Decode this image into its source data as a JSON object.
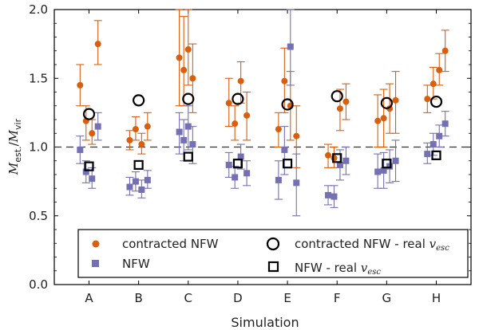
{
  "chart_data": {
    "type": "scatter",
    "xlabel": "Simulation",
    "ylabel": "M_est. / M_vir",
    "ylabel_main": "M",
    "ylabel_sub_num": "est.",
    "ylabel_sub_den": "vir",
    "ylim": [
      0.0,
      2.0
    ],
    "yticks": [
      0.0,
      0.5,
      1.0,
      1.5,
      2.0
    ],
    "ytick_labels": [
      "0.0",
      "0.5",
      "1.0",
      "1.5",
      "2.0"
    ],
    "categories": [
      "A",
      "B",
      "C",
      "D",
      "E",
      "F",
      "G",
      "H"
    ],
    "reference_line": 1.0,
    "colors": {
      "contracted": "#d95f0e",
      "nfw": "#7570b3",
      "frame": "#000000"
    },
    "legend": {
      "placement": "bottom",
      "entries": [
        {
          "marker": "circle-filled",
          "label": "contracted NFW"
        },
        {
          "marker": "circle-open",
          "label": "contracted NFW - real",
          "math": "v",
          "math_sub": "esc"
        },
        {
          "marker": "square-filled",
          "label": "NFW"
        },
        {
          "marker": "square-open",
          "label": "NFW - real",
          "math": "v",
          "math_sub": "esc"
        }
      ]
    },
    "series": [
      {
        "name": "contracted NFW",
        "marker": "circle-filled",
        "points": [
          {
            "x": "A",
            "offset": -0.18,
            "y": 1.45,
            "lo": 1.3,
            "hi": 1.6
          },
          {
            "x": "A",
            "offset": -0.06,
            "y": 1.19,
            "lo": 1.05,
            "hi": 1.3
          },
          {
            "x": "A",
            "offset": 0.06,
            "y": 1.1,
            "lo": 1.02,
            "hi": 1.2
          },
          {
            "x": "A",
            "offset": 0.18,
            "y": 1.75,
            "lo": 1.6,
            "hi": 1.92
          },
          {
            "x": "B",
            "offset": -0.18,
            "y": 1.05,
            "lo": 0.98,
            "hi": 1.12
          },
          {
            "x": "B",
            "offset": -0.06,
            "y": 1.13,
            "lo": 1.05,
            "hi": 1.22
          },
          {
            "x": "B",
            "offset": 0.06,
            "y": 1.02,
            "lo": 0.95,
            "hi": 1.1
          },
          {
            "x": "B",
            "offset": 0.18,
            "y": 1.15,
            "lo": 1.05,
            "hi": 1.25
          },
          {
            "x": "C",
            "offset": -0.18,
            "y": 1.65,
            "lo": 1.3,
            "hi": 2.0
          },
          {
            "x": "C",
            "offset": -0.09,
            "y": 1.56,
            "lo": 1.3,
            "hi": 1.95
          },
          {
            "x": "C",
            "offset": 0.0,
            "y": 1.71,
            "lo": 1.45,
            "hi": 2.0
          },
          {
            "x": "C",
            "offset": 0.09,
            "y": 1.5,
            "lo": 1.25,
            "hi": 1.75
          },
          {
            "x": "D",
            "offset": -0.18,
            "y": 1.32,
            "lo": 1.15,
            "hi": 1.5
          },
          {
            "x": "D",
            "offset": -0.06,
            "y": 1.17,
            "lo": 1.05,
            "hi": 1.3
          },
          {
            "x": "D",
            "offset": 0.06,
            "y": 1.48,
            "lo": 1.32,
            "hi": 1.62
          },
          {
            "x": "D",
            "offset": 0.18,
            "y": 1.23,
            "lo": 1.05,
            "hi": 1.4
          },
          {
            "x": "E",
            "offset": -0.18,
            "y": 1.13,
            "lo": 1.0,
            "hi": 1.25
          },
          {
            "x": "E",
            "offset": -0.06,
            "y": 1.48,
            "lo": 1.25,
            "hi": 1.72
          },
          {
            "x": "E",
            "offset": 0.06,
            "y": 1.3,
            "lo": 1.05,
            "hi": 1.55
          },
          {
            "x": "E",
            "offset": 0.18,
            "y": 1.08,
            "lo": 0.85,
            "hi": 1.3
          },
          {
            "x": "F",
            "offset": -0.18,
            "y": 0.94,
            "lo": 0.85,
            "hi": 1.02
          },
          {
            "x": "F",
            "offset": -0.06,
            "y": 0.92,
            "lo": 0.85,
            "hi": 1.0
          },
          {
            "x": "F",
            "offset": 0.06,
            "y": 1.28,
            "lo": 1.12,
            "hi": 1.42
          },
          {
            "x": "F",
            "offset": 0.18,
            "y": 1.33,
            "lo": 1.2,
            "hi": 1.46
          },
          {
            "x": "G",
            "offset": -0.18,
            "y": 1.19,
            "lo": 1.0,
            "hi": 1.38
          },
          {
            "x": "G",
            "offset": -0.06,
            "y": 1.21,
            "lo": 1.0,
            "hi": 1.42
          },
          {
            "x": "G",
            "offset": 0.06,
            "y": 1.28,
            "lo": 1.1,
            "hi": 1.46
          },
          {
            "x": "G",
            "offset": 0.18,
            "y": 1.34,
            "lo": 1.1,
            "hi": 1.55
          },
          {
            "x": "H",
            "offset": -0.18,
            "y": 1.35,
            "lo": 1.25,
            "hi": 1.45
          },
          {
            "x": "H",
            "offset": -0.06,
            "y": 1.46,
            "lo": 1.35,
            "hi": 1.58
          },
          {
            "x": "H",
            "offset": 0.06,
            "y": 1.56,
            "lo": 1.45,
            "hi": 1.68
          },
          {
            "x": "H",
            "offset": 0.18,
            "y": 1.7,
            "lo": 1.55,
            "hi": 1.85
          }
        ]
      },
      {
        "name": "NFW",
        "marker": "square-filled",
        "points": [
          {
            "x": "A",
            "offset": -0.18,
            "y": 0.98,
            "lo": 0.88,
            "hi": 1.08
          },
          {
            "x": "A",
            "offset": -0.06,
            "y": 0.82,
            "lo": 0.74,
            "hi": 0.9
          },
          {
            "x": "A",
            "offset": 0.06,
            "y": 0.77,
            "lo": 0.7,
            "hi": 0.85
          },
          {
            "x": "A",
            "offset": 0.18,
            "y": 1.15,
            "lo": 1.05,
            "hi": 1.25
          },
          {
            "x": "B",
            "offset": -0.18,
            "y": 0.71,
            "lo": 0.65,
            "hi": 0.78
          },
          {
            "x": "B",
            "offset": -0.06,
            "y": 0.75,
            "lo": 0.68,
            "hi": 0.82
          },
          {
            "x": "B",
            "offset": 0.06,
            "y": 0.69,
            "lo": 0.63,
            "hi": 0.76
          },
          {
            "x": "B",
            "offset": 0.18,
            "y": 0.76,
            "lo": 0.7,
            "hi": 0.83
          },
          {
            "x": "C",
            "offset": -0.18,
            "y": 1.11,
            "lo": 0.95,
            "hi": 1.25
          },
          {
            "x": "C",
            "offset": -0.09,
            "y": 1.05,
            "lo": 0.9,
            "hi": 1.2
          },
          {
            "x": "C",
            "offset": 0.0,
            "y": 1.15,
            "lo": 0.98,
            "hi": 1.3
          },
          {
            "x": "C",
            "offset": 0.09,
            "y": 1.02,
            "lo": 0.88,
            "hi": 1.15
          },
          {
            "x": "D",
            "offset": -0.18,
            "y": 0.87,
            "lo": 0.78,
            "hi": 0.96
          },
          {
            "x": "D",
            "offset": -0.06,
            "y": 0.78,
            "lo": 0.7,
            "hi": 0.86
          },
          {
            "x": "D",
            "offset": 0.06,
            "y": 0.93,
            "lo": 0.84,
            "hi": 1.02
          },
          {
            "x": "D",
            "offset": 0.18,
            "y": 0.81,
            "lo": 0.72,
            "hi": 0.9
          },
          {
            "x": "E",
            "offset": -0.18,
            "y": 0.76,
            "lo": 0.62,
            "hi": 0.9
          },
          {
            "x": "E",
            "offset": -0.06,
            "y": 0.98,
            "lo": 0.8,
            "hi": 1.15
          },
          {
            "x": "E",
            "offset": 0.06,
            "y": 1.73,
            "lo": 1.45,
            "hi": 2.0
          },
          {
            "x": "E",
            "offset": 0.18,
            "y": 0.74,
            "lo": 0.5,
            "hi": 0.95
          },
          {
            "x": "F",
            "offset": -0.18,
            "y": 0.65,
            "lo": 0.58,
            "hi": 0.72
          },
          {
            "x": "F",
            "offset": -0.06,
            "y": 0.64,
            "lo": 0.56,
            "hi": 0.72
          },
          {
            "x": "F",
            "offset": 0.06,
            "y": 0.87,
            "lo": 0.76,
            "hi": 0.98
          },
          {
            "x": "F",
            "offset": 0.18,
            "y": 0.9,
            "lo": 0.8,
            "hi": 1.0
          },
          {
            "x": "G",
            "offset": -0.18,
            "y": 0.82,
            "lo": 0.7,
            "hi": 0.95
          },
          {
            "x": "G",
            "offset": -0.06,
            "y": 0.83,
            "lo": 0.7,
            "hi": 0.96
          },
          {
            "x": "G",
            "offset": 0.06,
            "y": 0.86,
            "lo": 0.74,
            "hi": 0.98
          },
          {
            "x": "G",
            "offset": 0.18,
            "y": 0.9,
            "lo": 0.75,
            "hi": 1.05
          },
          {
            "x": "H",
            "offset": -0.18,
            "y": 0.95,
            "lo": 0.88,
            "hi": 1.03
          },
          {
            "x": "H",
            "offset": -0.06,
            "y": 1.02,
            "lo": 0.94,
            "hi": 1.1
          },
          {
            "x": "H",
            "offset": 0.06,
            "y": 1.08,
            "lo": 1.0,
            "hi": 1.16
          },
          {
            "x": "H",
            "offset": 0.18,
            "y": 1.17,
            "lo": 1.08,
            "hi": 1.26
          }
        ]
      },
      {
        "name": "contracted NFW - real v_esc",
        "marker": "circle-open",
        "points": [
          {
            "x": "A",
            "offset": 0.0,
            "y": 1.24
          },
          {
            "x": "B",
            "offset": 0.0,
            "y": 1.34
          },
          {
            "x": "C",
            "offset": 0.0,
            "y": 1.35
          },
          {
            "x": "D",
            "offset": 0.0,
            "y": 1.35
          },
          {
            "x": "E",
            "offset": 0.0,
            "y": 1.31
          },
          {
            "x": "F",
            "offset": 0.0,
            "y": 1.37
          },
          {
            "x": "G",
            "offset": 0.0,
            "y": 1.32
          },
          {
            "x": "H",
            "offset": 0.0,
            "y": 1.33
          }
        ]
      },
      {
        "name": "NFW - real v_esc",
        "marker": "square-open",
        "points": [
          {
            "x": "A",
            "offset": 0.0,
            "y": 0.86
          },
          {
            "x": "B",
            "offset": 0.0,
            "y": 0.87
          },
          {
            "x": "C",
            "offset": 0.0,
            "y": 0.93
          },
          {
            "x": "D",
            "offset": 0.0,
            "y": 0.88
          },
          {
            "x": "E",
            "offset": 0.0,
            "y": 0.88
          },
          {
            "x": "F",
            "offset": 0.0,
            "y": 0.92
          },
          {
            "x": "G",
            "offset": 0.0,
            "y": 0.88
          },
          {
            "x": "H",
            "offset": 0.0,
            "y": 0.94
          }
        ]
      }
    ]
  }
}
